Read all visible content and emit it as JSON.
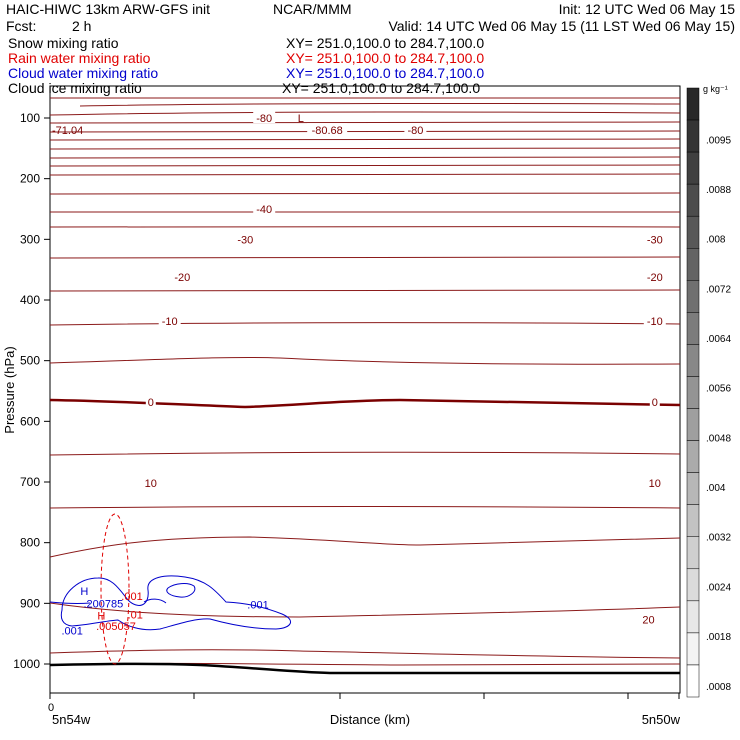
{
  "header": {
    "model": "HAIC-HIWC 13km ARW-GFS init",
    "center": "NCAR/MMM",
    "init": "Init: 12 UTC Wed 06 May 15",
    "fcst_label": "Fcst:",
    "fcst_value": "2 h",
    "valid": "Valid: 14 UTC Wed 06 May 15 (11 LST Wed 06 May 15)"
  },
  "fields": [
    {
      "name": "Snow mixing ratio",
      "xsec": "XY= 251.0,100.0 to 284.7,100.0",
      "color": "#000000"
    },
    {
      "name": "Rain water mixing ratio",
      "xsec": "XY= 251.0,100.0 to 284.7,100.0",
      "color": "#e00000"
    },
    {
      "name": "Cloud water mixing ratio",
      "xsec": "XY= 251.0,100.0 to 284.7,100.0",
      "color": "#0000cc"
    },
    {
      "name": "Cloud ice mixing ratio",
      "xsec": "XY= 251.0,100.0 to 284.7,100.0",
      "color": "#000000"
    }
  ],
  "chart_data": {
    "type": "contour cross-section",
    "ylabel": "Pressure (hPa)",
    "xlabel": "Distance (km)",
    "x_left_label": "5n54w",
    "x_right_label": "5n50w",
    "x_zero_label": "0",
    "y_ticks": [
      100,
      200,
      300,
      400,
      500,
      600,
      700,
      800,
      900,
      1000
    ],
    "ylim": [
      60,
      1050
    ],
    "colorbar": {
      "unit": "g kg⁻¹",
      "labels": [
        ".0095",
        ".0088",
        ".008",
        ".0072",
        ".0064",
        ".0056",
        ".0048",
        ".004",
        ".0032",
        ".0024",
        ".0018",
        ".0008"
      ]
    },
    "temperature_labels": [
      {
        "text": "-80",
        "x": 0.34,
        "p": 100
      },
      {
        "text": "-80.68",
        "x": 0.44,
        "p": 120
      },
      {
        "text": "-80",
        "x": 0.58,
        "p": 120
      },
      {
        "text": "-40",
        "x": 0.34,
        "p": 250
      },
      {
        "text": "-30",
        "x": 0.31,
        "p": 300
      },
      {
        "text": "-30",
        "x": 0.96,
        "p": 300
      },
      {
        "text": "-20",
        "x": 0.21,
        "p": 362
      },
      {
        "text": "-20",
        "x": 0.96,
        "p": 362
      },
      {
        "text": "-10",
        "x": 0.19,
        "p": 435
      },
      {
        "text": "-10",
        "x": 0.96,
        "p": 435
      },
      {
        "text": "0",
        "x": 0.16,
        "p": 568
      },
      {
        "text": "0",
        "x": 0.96,
        "p": 568
      },
      {
        "text": "10",
        "x": 0.16,
        "p": 702
      },
      {
        "text": "10",
        "x": 0.96,
        "p": 702
      },
      {
        "text": "20",
        "x": 0.95,
        "p": 927
      }
    ],
    "extrema": [
      {
        "text": "L",
        "x": 0.39,
        "p": 100,
        "color": "#7a0000"
      },
      {
        "text": "-71.04",
        "x": 0.0,
        "p": 120,
        "color": "#7a0000"
      },
      {
        "text": "H",
        "x": 0.045,
        "p": 880,
        "color": "#0000cc"
      },
      {
        "text": ".200785",
        "x": 0.05,
        "p": 900,
        "color": "#0000cc"
      },
      {
        "text": "H",
        "x": 0.072,
        "p": 920,
        "color": "#e00000"
      },
      {
        "text": ".005057",
        "x": 0.07,
        "p": 937,
        "color": "#e00000"
      }
    ],
    "contour_labels": [
      {
        "text": ".001",
        "x": 0.11,
        "p": 888,
        "color": "#e00000"
      },
      {
        "text": ".001",
        "x": 0.31,
        "p": 902,
        "color": "#0000cc"
      },
      {
        "text": ".001",
        "x": 0.015,
        "p": 945,
        "color": "#0000cc"
      },
      {
        "text": ".01",
        "x": 0.12,
        "p": 918,
        "color": "#e00000"
      }
    ]
  }
}
